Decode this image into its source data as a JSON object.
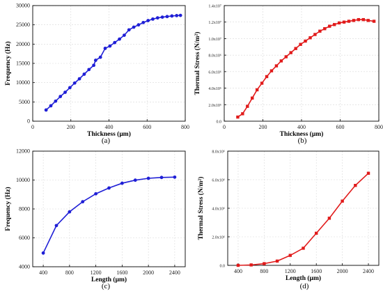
{
  "chart_data": [
    {
      "type": "line",
      "panel_label": "(a)",
      "xlabel": "Thickness (µm)",
      "ylabel": "Frequency (Hz)",
      "xlim": [
        0,
        800
      ],
      "ylim": [
        0,
        30000
      ],
      "xticks": [
        "0",
        "200",
        "400",
        "600",
        "800"
      ],
      "yticks": [
        "0",
        "5000",
        "10000",
        "15000",
        "20000",
        "25000",
        "30000"
      ],
      "grid": true,
      "marker": "circle",
      "color": "#1f1fd6",
      "series": [
        {
          "x": [
            70,
            95,
            120,
            145,
            170,
            195,
            220,
            245,
            270,
            295,
            320,
            330,
            355,
            380,
            405,
            430,
            455,
            480,
            505,
            530,
            555,
            580,
            605,
            630,
            655,
            680,
            705,
            730,
            755,
            775
          ],
          "values": [
            2900,
            4000,
            5200,
            6400,
            7500,
            8700,
            9900,
            11000,
            12200,
            13400,
            14500,
            15800,
            16600,
            18900,
            19500,
            20400,
            21300,
            22300,
            23700,
            24400,
            25000,
            25600,
            26100,
            26500,
            26800,
            27000,
            27150,
            27300,
            27400,
            27450
          ]
        }
      ]
    },
    {
      "type": "line",
      "panel_label": "(b)",
      "xlabel": "Thickness (µm)",
      "ylabel": "Thermal Stress (N/m²)",
      "xlim": [
        0,
        800
      ],
      "ylim": [
        0,
        14000000.0
      ],
      "xticks": [
        "0",
        "200",
        "400",
        "600",
        "800"
      ],
      "yticks": [
        "0.0",
        "2.0x10⁶",
        "4.0x10⁶",
        "6.0x10⁶",
        "8.0x10⁶",
        "1.0x10⁷",
        "1.2x10⁷",
        "1.4x10⁷"
      ],
      "grid": true,
      "marker": "square",
      "color": "#e11b1b",
      "series": [
        {
          "x": [
            70,
            95,
            120,
            145,
            170,
            195,
            220,
            245,
            270,
            295,
            320,
            345,
            370,
            395,
            420,
            445,
            470,
            495,
            520,
            545,
            570,
            595,
            620,
            645,
            670,
            695,
            720,
            745,
            775
          ],
          "values": [
            500000,
            900000,
            1800000,
            2800000,
            3800000,
            4600000,
            5400000,
            6100000,
            6700000,
            7300000,
            7800000,
            8300000,
            8800000,
            9300000,
            9700000,
            10100000,
            10500000,
            10900000,
            11200000,
            11500000,
            11700000,
            11900000,
            12000000,
            12100000,
            12200000,
            12300000,
            12300000,
            12200000,
            12100000
          ]
        }
      ]
    },
    {
      "type": "line",
      "panel_label": "(c)",
      "xlabel": "Length (µm)",
      "ylabel": "Frequency (Hz)",
      "xlim": [
        240,
        2560
      ],
      "ylim": [
        4000,
        12000
      ],
      "xticks": [
        "400",
        "800",
        "1200",
        "1600",
        "2000",
        "2400"
      ],
      "xtick_values": [
        400,
        800,
        1200,
        1600,
        2000,
        2400
      ],
      "yticks": [
        "4000",
        "6000",
        "8000",
        "10000",
        "12000"
      ],
      "grid": true,
      "marker": "circle",
      "color": "#1f1fd6",
      "series": [
        {
          "x": [
            400,
            600,
            800,
            1000,
            1200,
            1400,
            1600,
            1800,
            2000,
            2200,
            2400
          ],
          "values": [
            4950,
            6850,
            7800,
            8500,
            9050,
            9450,
            9780,
            9990,
            10120,
            10180,
            10200
          ]
        }
      ]
    },
    {
      "type": "line",
      "panel_label": "(d)",
      "xlabel": "Length (µm)",
      "ylabel": "Thermal Stress (N/m²)",
      "xlim": [
        240,
        2560
      ],
      "ylim": [
        0,
        8000000.0
      ],
      "xticks": [
        "400",
        "800",
        "1200",
        "1600",
        "2000",
        "2400"
      ],
      "xtick_values": [
        400,
        800,
        1200,
        1600,
        2000,
        2400
      ],
      "yticks": [
        "0.0",
        "2.0x10⁶",
        "4.0x10⁶",
        "6.0x10⁶",
        "8.0x10⁶"
      ],
      "grid": true,
      "marker": "square",
      "color": "#e11b1b",
      "series": [
        {
          "x": [
            400,
            600,
            800,
            1000,
            1200,
            1400,
            1600,
            1800,
            2000,
            2200,
            2400
          ],
          "values": [
            0,
            30000,
            120000,
            300000,
            700000,
            1200000,
            2250000,
            3300000,
            4500000,
            5600000,
            6450000
          ]
        }
      ]
    }
  ]
}
